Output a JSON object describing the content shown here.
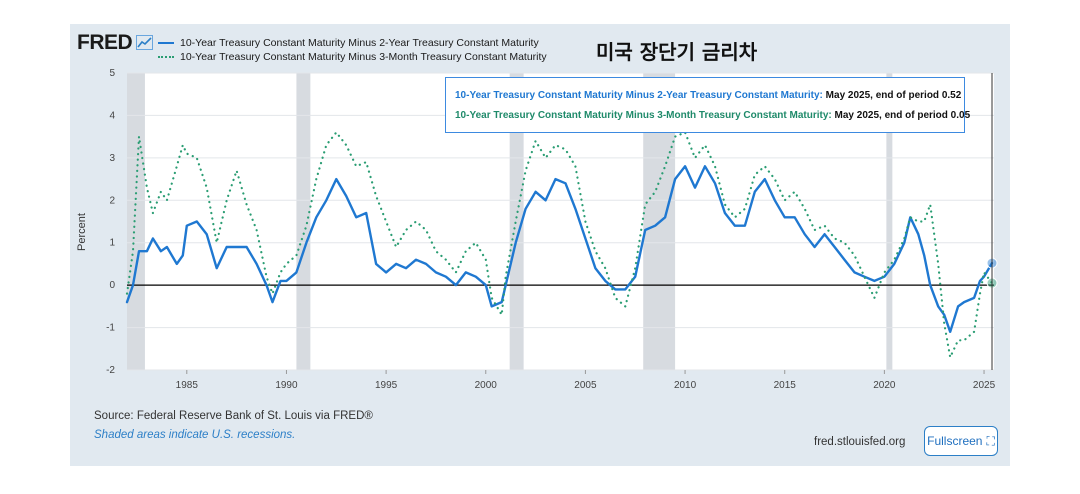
{
  "header": {
    "logo": "FRED",
    "logo_icon": "line-chart-icon",
    "korean_title": "미국 장단기 금리차"
  },
  "tooltip": {
    "row1_name": "10-Year Treasury Constant Maturity Minus 2-Year Treasury Constant Maturity:",
    "row1_value": "May 2025, end of period 0.52",
    "row2_name": "10-Year Treasury Constant Maturity Minus 3-Month Treasury Constant Maturity:",
    "row2_value": "May 2025, end of period 0.05"
  },
  "footer": {
    "source": "Source: Federal Reserve Bank of St. Louis via FRED®",
    "recessions": "Shaded areas indicate U.S. recessions.",
    "site": "fred.stlouisfed.org",
    "fullscreen": "Fullscreen",
    "fullscreen_icon": "expand-icon"
  },
  "colors": {
    "series_a": "#1f78d1",
    "series_b": "#2a9d73",
    "recession": "#d7dbe0",
    "background": "#e1e9f0"
  },
  "chart_data": {
    "type": "line",
    "ylabel": "Percent",
    "ylim": [
      -2,
      5
    ],
    "xlim": [
      1982.0,
      2025.5
    ],
    "yticks": [
      "5",
      "4",
      "3",
      "2",
      "1",
      "0",
      "-1",
      "-2"
    ],
    "xticks": [
      "1985",
      "1990",
      "1995",
      "2000",
      "2005",
      "2010",
      "2015",
      "2020",
      "2025"
    ],
    "recessions": [
      [
        1981.6,
        1982.9
      ],
      [
        1990.5,
        1991.2
      ],
      [
        2001.2,
        2001.9
      ],
      [
        2007.9,
        2009.5
      ],
      [
        2020.1,
        2020.4
      ]
    ],
    "grid": true,
    "legend_position": "top-left",
    "series": [
      {
        "name": "10-Year Treasury Constant Maturity Minus 2-Year Treasury Constant Maturity",
        "style": "solid",
        "points": [
          [
            1982.0,
            -0.4
          ],
          [
            1982.3,
            0.0
          ],
          [
            1982.6,
            0.8
          ],
          [
            1983.0,
            0.8
          ],
          [
            1983.3,
            1.1
          ],
          [
            1983.7,
            0.8
          ],
          [
            1984.0,
            0.9
          ],
          [
            1984.5,
            0.5
          ],
          [
            1984.8,
            0.7
          ],
          [
            1985.0,
            1.4
          ],
          [
            1985.5,
            1.5
          ],
          [
            1986.0,
            1.2
          ],
          [
            1986.5,
            0.4
          ],
          [
            1987.0,
            0.9
          ],
          [
            1987.5,
            0.9
          ],
          [
            1988.0,
            0.9
          ],
          [
            1988.5,
            0.5
          ],
          [
            1989.0,
            0.0
          ],
          [
            1989.3,
            -0.4
          ],
          [
            1989.7,
            0.1
          ],
          [
            1990.0,
            0.1
          ],
          [
            1990.5,
            0.3
          ],
          [
            1991.0,
            1.0
          ],
          [
            1991.5,
            1.6
          ],
          [
            1992.0,
            2.0
          ],
          [
            1992.5,
            2.5
          ],
          [
            1993.0,
            2.1
          ],
          [
            1993.5,
            1.6
          ],
          [
            1994.0,
            1.7
          ],
          [
            1994.5,
            0.5
          ],
          [
            1995.0,
            0.3
          ],
          [
            1995.5,
            0.5
          ],
          [
            1996.0,
            0.4
          ],
          [
            1996.5,
            0.6
          ],
          [
            1997.0,
            0.5
          ],
          [
            1997.5,
            0.3
          ],
          [
            1998.0,
            0.2
          ],
          [
            1998.5,
            0.0
          ],
          [
            1999.0,
            0.3
          ],
          [
            1999.5,
            0.2
          ],
          [
            2000.0,
            0.0
          ],
          [
            2000.3,
            -0.5
          ],
          [
            2000.8,
            -0.4
          ],
          [
            2001.0,
            0.0
          ],
          [
            2001.5,
            1.0
          ],
          [
            2002.0,
            1.8
          ],
          [
            2002.5,
            2.2
          ],
          [
            2003.0,
            2.0
          ],
          [
            2003.5,
            2.5
          ],
          [
            2004.0,
            2.4
          ],
          [
            2004.5,
            1.8
          ],
          [
            2005.0,
            1.1
          ],
          [
            2005.5,
            0.4
          ],
          [
            2006.0,
            0.1
          ],
          [
            2006.5,
            -0.1
          ],
          [
            2007.0,
            -0.1
          ],
          [
            2007.5,
            0.2
          ],
          [
            2008.0,
            1.3
          ],
          [
            2008.5,
            1.4
          ],
          [
            2009.0,
            1.6
          ],
          [
            2009.5,
            2.5
          ],
          [
            2010.0,
            2.8
          ],
          [
            2010.5,
            2.3
          ],
          [
            2011.0,
            2.8
          ],
          [
            2011.5,
            2.4
          ],
          [
            2012.0,
            1.7
          ],
          [
            2012.5,
            1.4
          ],
          [
            2013.0,
            1.4
          ],
          [
            2013.5,
            2.2
          ],
          [
            2014.0,
            2.5
          ],
          [
            2014.5,
            2.0
          ],
          [
            2015.0,
            1.6
          ],
          [
            2015.5,
            1.6
          ],
          [
            2016.0,
            1.2
          ],
          [
            2016.5,
            0.9
          ],
          [
            2017.0,
            1.2
          ],
          [
            2017.5,
            0.9
          ],
          [
            2018.0,
            0.6
          ],
          [
            2018.5,
            0.3
          ],
          [
            2019.0,
            0.2
          ],
          [
            2019.5,
            0.1
          ],
          [
            2020.0,
            0.2
          ],
          [
            2020.5,
            0.5
          ],
          [
            2021.0,
            1.0
          ],
          [
            2021.3,
            1.6
          ],
          [
            2021.7,
            1.2
          ],
          [
            2022.0,
            0.7
          ],
          [
            2022.3,
            0.0
          ],
          [
            2022.7,
            -0.5
          ],
          [
            2023.0,
            -0.7
          ],
          [
            2023.3,
            -1.1
          ],
          [
            2023.7,
            -0.5
          ],
          [
            2024.0,
            -0.4
          ],
          [
            2024.5,
            -0.3
          ],
          [
            2024.8,
            0.1
          ],
          [
            2025.0,
            0.2
          ],
          [
            2025.4,
            0.52
          ]
        ]
      },
      {
        "name": "10-Year Treasury Constant Maturity Minus 3-Month Treasury Constant Maturity",
        "style": "dotted",
        "points": [
          [
            1982.0,
            -0.2
          ],
          [
            1982.3,
            0.8
          ],
          [
            1982.6,
            3.5
          ],
          [
            1983.0,
            2.3
          ],
          [
            1983.3,
            1.7
          ],
          [
            1983.7,
            2.2
          ],
          [
            1984.0,
            2.0
          ],
          [
            1984.5,
            2.8
          ],
          [
            1984.8,
            3.3
          ],
          [
            1985.0,
            3.1
          ],
          [
            1985.5,
            3.0
          ],
          [
            1986.0,
            2.3
          ],
          [
            1986.5,
            1.0
          ],
          [
            1987.0,
            2.0
          ],
          [
            1987.5,
            2.7
          ],
          [
            1988.0,
            1.9
          ],
          [
            1988.5,
            1.3
          ],
          [
            1989.0,
            0.2
          ],
          [
            1989.3,
            -0.2
          ],
          [
            1989.7,
            0.3
          ],
          [
            1990.0,
            0.5
          ],
          [
            1990.5,
            0.7
          ],
          [
            1991.0,
            1.4
          ],
          [
            1991.5,
            2.5
          ],
          [
            1992.0,
            3.3
          ],
          [
            1992.5,
            3.6
          ],
          [
            1993.0,
            3.3
          ],
          [
            1993.5,
            2.8
          ],
          [
            1994.0,
            2.9
          ],
          [
            1994.5,
            2.1
          ],
          [
            1995.0,
            1.5
          ],
          [
            1995.5,
            0.9
          ],
          [
            1996.0,
            1.3
          ],
          [
            1996.5,
            1.5
          ],
          [
            1997.0,
            1.3
          ],
          [
            1997.5,
            0.8
          ],
          [
            1998.0,
            0.6
          ],
          [
            1998.5,
            0.3
          ],
          [
            1999.0,
            0.8
          ],
          [
            1999.5,
            1.0
          ],
          [
            2000.0,
            0.6
          ],
          [
            2000.3,
            -0.3
          ],
          [
            2000.8,
            -0.7
          ],
          [
            2001.0,
            0.2
          ],
          [
            2001.5,
            1.5
          ],
          [
            2002.0,
            2.7
          ],
          [
            2002.5,
            3.4
          ],
          [
            2003.0,
            3.0
          ],
          [
            2003.5,
            3.3
          ],
          [
            2004.0,
            3.2
          ],
          [
            2004.5,
            2.8
          ],
          [
            2005.0,
            1.5
          ],
          [
            2005.5,
            0.8
          ],
          [
            2006.0,
            0.4
          ],
          [
            2006.5,
            -0.3
          ],
          [
            2007.0,
            -0.5
          ],
          [
            2007.5,
            0.4
          ],
          [
            2008.0,
            1.9
          ],
          [
            2008.5,
            2.2
          ],
          [
            2009.0,
            2.8
          ],
          [
            2009.5,
            3.5
          ],
          [
            2010.0,
            3.6
          ],
          [
            2010.5,
            3.0
          ],
          [
            2011.0,
            3.3
          ],
          [
            2011.5,
            2.8
          ],
          [
            2012.0,
            1.9
          ],
          [
            2012.5,
            1.6
          ],
          [
            2013.0,
            1.8
          ],
          [
            2013.5,
            2.6
          ],
          [
            2014.0,
            2.8
          ],
          [
            2014.5,
            2.5
          ],
          [
            2015.0,
            2.0
          ],
          [
            2015.5,
            2.2
          ],
          [
            2016.0,
            1.8
          ],
          [
            2016.5,
            1.3
          ],
          [
            2017.0,
            1.4
          ],
          [
            2017.5,
            1.1
          ],
          [
            2018.0,
            1.0
          ],
          [
            2018.5,
            0.7
          ],
          [
            2019.0,
            0.2
          ],
          [
            2019.5,
            -0.3
          ],
          [
            2020.0,
            0.3
          ],
          [
            2020.5,
            0.6
          ],
          [
            2021.0,
            1.1
          ],
          [
            2021.3,
            1.6
          ],
          [
            2021.7,
            1.5
          ],
          [
            2022.0,
            1.5
          ],
          [
            2022.3,
            1.9
          ],
          [
            2022.7,
            0.5
          ],
          [
            2023.0,
            -0.9
          ],
          [
            2023.3,
            -1.7
          ],
          [
            2023.7,
            -1.3
          ],
          [
            2024.0,
            -1.3
          ],
          [
            2024.5,
            -1.1
          ],
          [
            2024.8,
            -0.2
          ],
          [
            2025.0,
            0.3
          ],
          [
            2025.4,
            0.05
          ]
        ]
      }
    ]
  }
}
